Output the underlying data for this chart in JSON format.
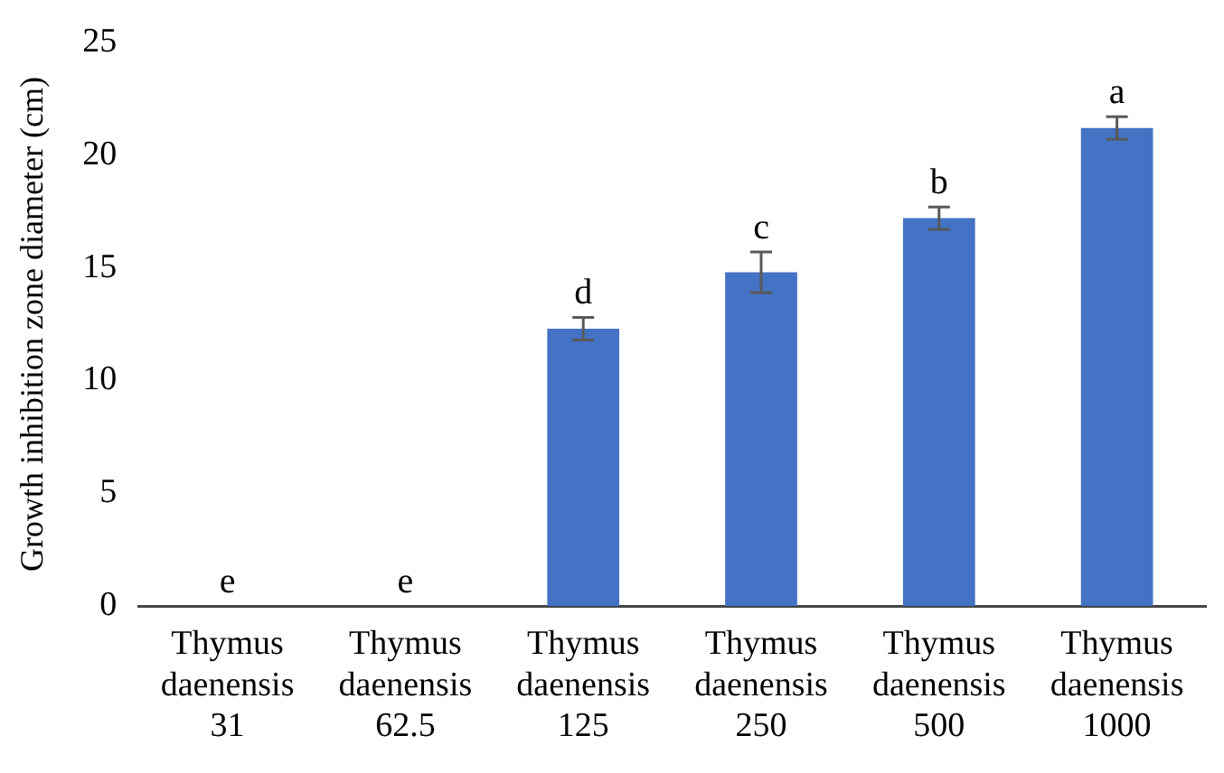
{
  "chart_data": {
    "type": "bar",
    "ylabel": "Growth inhibition zone diameter (cm)",
    "categories": [
      "Thymus daenensis 31",
      "Thymus daenensis 62.5",
      "Thymus daenensis 125",
      "Thymus daenensis 250",
      "Thymus daenensis 500",
      "Thymus daenensis 1000"
    ],
    "values": [
      0,
      0,
      12.3,
      14.8,
      17.2,
      21.2
    ],
    "errors": [
      null,
      null,
      0.5,
      0.9,
      0.5,
      0.5
    ],
    "color": "#4472c4",
    "ylim": [
      0,
      25
    ],
    "yticks": [
      0,
      5,
      10,
      15,
      20,
      25
    ],
    "grid": false,
    "legend": false,
    "annotations": [
      {
        "text": "e",
        "x": "Thymus daenensis 31",
        "y": 0
      },
      {
        "text": "e",
        "x": "Thymus daenensis 62.5",
        "y": 0
      },
      {
        "text": "d",
        "x": "Thymus daenensis 125",
        "y": 12.8
      },
      {
        "text": "c",
        "x": "Thymus daenensis 250",
        "y": 15.7
      },
      {
        "text": "b",
        "x": "Thymus daenensis 500",
        "y": 17.7
      },
      {
        "text": "a",
        "x": "Thymus daenensis 1000",
        "y": 21.7
      }
    ]
  }
}
